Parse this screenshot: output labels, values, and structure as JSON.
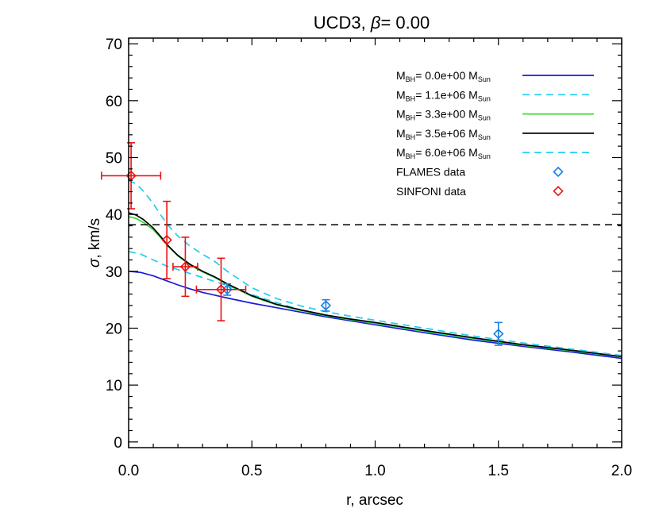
{
  "chart_data": {
    "type": "line",
    "title_prefix": "UCD3, ",
    "title_beta": "β",
    "title_suffix": "=  0.00",
    "xlabel": "r, arcsec",
    "ylabel_sym": "σ",
    "ylabel_rest": ", km/s",
    "xlim": [
      0,
      2.0
    ],
    "ylim": [
      -1,
      71
    ],
    "xticks": [
      0,
      0.5,
      1.0,
      1.5,
      2.0
    ],
    "xtick_labels": [
      "0.0",
      "0.5",
      "1.0",
      "1.5",
      "2.0"
    ],
    "yticks": [
      0,
      10,
      20,
      30,
      40,
      50,
      60,
      70
    ],
    "ytick_labels": [
      "0",
      "10",
      "20",
      "30",
      "40",
      "50",
      "60",
      "70"
    ],
    "reference_line": {
      "y": 38.2,
      "style": "dashed",
      "color": "#000000"
    },
    "legend_position": "top-right",
    "series": [
      {
        "name": "0.0e+00",
        "color": "#1a1ad6",
        "dash": "solid",
        "x": [
          0,
          0.05,
          0.1,
          0.15,
          0.2,
          0.25,
          0.3,
          0.35,
          0.4,
          0.5,
          0.6,
          0.7,
          0.8,
          0.9,
          1.0,
          1.2,
          1.4,
          1.6,
          1.8,
          2.0
        ],
        "y": [
          30.0,
          29.8,
          29.2,
          28.4,
          27.6,
          26.9,
          26.3,
          25.8,
          25.3,
          24.4,
          23.6,
          22.8,
          22.0,
          21.3,
          20.6,
          19.2,
          17.9,
          16.8,
          15.8,
          14.7
        ]
      },
      {
        "name": "1.1e+06",
        "color": "#22ccee",
        "dash": "dashed",
        "x": [
          0,
          0.05,
          0.1,
          0.15,
          0.2,
          0.25,
          0.3,
          0.35,
          0.4,
          0.5,
          0.6,
          0.7,
          0.8,
          0.9,
          1.0,
          1.2,
          1.4,
          1.6,
          1.8,
          2.0
        ],
        "y": [
          33.5,
          33.0,
          32.0,
          31.0,
          30.3,
          29.6,
          28.9,
          28.2,
          27.5,
          25.9,
          24.5,
          23.2,
          22.2,
          21.5,
          20.8,
          19.4,
          18.1,
          17.0,
          16.0,
          15.0
        ]
      },
      {
        "name": "3.3e+00",
        "color": "#33dd33",
        "dash": "solid",
        "x": [
          0,
          0.03,
          0.06,
          0.1,
          0.13,
          0.16,
          0.2,
          0.25,
          0.3,
          0.35,
          0.4,
          0.5,
          0.6,
          0.7,
          0.8,
          0.9,
          1.0,
          1.2,
          1.4,
          1.6,
          1.8,
          2.0
        ],
        "y": [
          39.6,
          39.3,
          38.6,
          37.3,
          35.9,
          34.4,
          32.7,
          31.1,
          29.9,
          28.9,
          27.7,
          25.6,
          24.1,
          23.1,
          22.2,
          21.5,
          20.9,
          19.5,
          18.2,
          17.0,
          16.0,
          15.0
        ]
      },
      {
        "name": "3.5e+06",
        "color": "#000000",
        "dash": "solid",
        "x": [
          0,
          0.03,
          0.06,
          0.1,
          0.13,
          0.16,
          0.2,
          0.25,
          0.3,
          0.35,
          0.4,
          0.5,
          0.6,
          0.7,
          0.8,
          0.9,
          1.0,
          1.2,
          1.4,
          1.6,
          1.8,
          2.0
        ],
        "y": [
          40.3,
          39.9,
          39.1,
          37.6,
          36.1,
          34.5,
          32.8,
          31.2,
          30.0,
          29.0,
          27.8,
          25.7,
          24.2,
          23.2,
          22.3,
          21.6,
          21.0,
          19.6,
          18.3,
          17.1,
          16.1,
          15.0
        ]
      },
      {
        "name": "6.0e+06",
        "color": "#22ccee",
        "dash": "dashed",
        "x": [
          0,
          0.03,
          0.06,
          0.1,
          0.13,
          0.16,
          0.2,
          0.25,
          0.3,
          0.35,
          0.4,
          0.5,
          0.6,
          0.7,
          0.8,
          0.9,
          1.0,
          1.2,
          1.4,
          1.6,
          1.8,
          2.0
        ],
        "y": [
          46.0,
          45.4,
          44.1,
          41.9,
          39.9,
          38.1,
          36.2,
          34.4,
          33.0,
          31.7,
          30.0,
          27.1,
          25.2,
          23.9,
          22.9,
          22.1,
          21.4,
          20.0,
          18.6,
          17.4,
          16.3,
          15.2
        ]
      }
    ],
    "legend_entries": [
      {
        "label_main": "M",
        "label_sub": "BH",
        "label_eq": "= 0.0e+00 M",
        "label_unit_sub": "Sun",
        "color": "#1a1ad6",
        "dash": "solid"
      },
      {
        "label_main": "M",
        "label_sub": "BH",
        "label_eq": "= 1.1e+06 M",
        "label_unit_sub": "Sun",
        "color": "#22ccee",
        "dash": "dashed"
      },
      {
        "label_main": "M",
        "label_sub": "BH",
        "label_eq": "= 3.3e+00 M",
        "label_unit_sub": "Sun",
        "color": "#33dd33",
        "dash": "solid"
      },
      {
        "label_main": "M",
        "label_sub": "BH",
        "label_eq": "= 3.5e+06 M",
        "label_unit_sub": "Sun",
        "color": "#000000",
        "dash": "solid"
      },
      {
        "label_main": "M",
        "label_sub": "BH",
        "label_eq": "= 6.0e+06 M",
        "label_unit_sub": "Sun",
        "color": "#22ccee",
        "dash": "dashed"
      }
    ],
    "data_sets": [
      {
        "name": "FLAMES data",
        "color": "#1a7fe0",
        "marker": "diamond",
        "points": [
          {
            "x": 0.4,
            "y": 26.8,
            "yerr": 1.0,
            "xerr": 0
          },
          {
            "x": 0.8,
            "y": 24.0,
            "yerr": 1.0,
            "xerr": 0
          },
          {
            "x": 1.5,
            "y": 19.0,
            "yerr": 2.0,
            "xerr": 0
          }
        ]
      },
      {
        "name": "SINFONI data",
        "color": "#ee1111",
        "marker": "diamond",
        "points": [
          {
            "x": 0.01,
            "y": 46.8,
            "yerr": 5.8,
            "xerr": 0.12
          },
          {
            "x": 0.155,
            "y": 35.5,
            "yerr": 6.8,
            "xerr": 0.0
          },
          {
            "x": 0.23,
            "y": 30.8,
            "yerr": 5.2,
            "xerr": 0.05
          },
          {
            "x": 0.375,
            "y": 26.8,
            "yerr": 5.5,
            "xerr": 0.1
          }
        ]
      }
    ]
  }
}
